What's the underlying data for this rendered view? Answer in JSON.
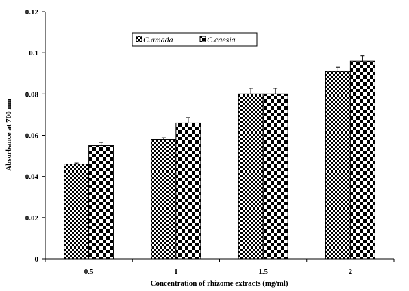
{
  "chart_data": {
    "type": "bar",
    "title": "",
    "xlabel": "Concentration of rhizome extracts (mg/ml)",
    "ylabel": "Absorbance at 700 nm",
    "categories": [
      "0.5",
      "1",
      "1.5",
      "2"
    ],
    "series": [
      {
        "name": "C.amada",
        "values": [
          0.046,
          0.058,
          0.08,
          0.091
        ],
        "errors": [
          0.0005,
          0.0008,
          0.0028,
          0.002
        ],
        "pattern": "fine-checker"
      },
      {
        "name": "C.caesia",
        "values": [
          0.055,
          0.066,
          0.08,
          0.096
        ],
        "errors": [
          0.0015,
          0.0025,
          0.0028,
          0.0025
        ],
        "pattern": "coarse-checker"
      }
    ],
    "ylim": [
      0,
      0.12
    ],
    "yticks": [
      "0",
      "0.02",
      "0.04",
      "0.06",
      "0.08",
      "0.1",
      "0.12"
    ],
    "grid": false,
    "legend_position": "top-center",
    "colors": {
      "bar_ink": "#000000",
      "bar_paper": "#ffffff"
    }
  }
}
